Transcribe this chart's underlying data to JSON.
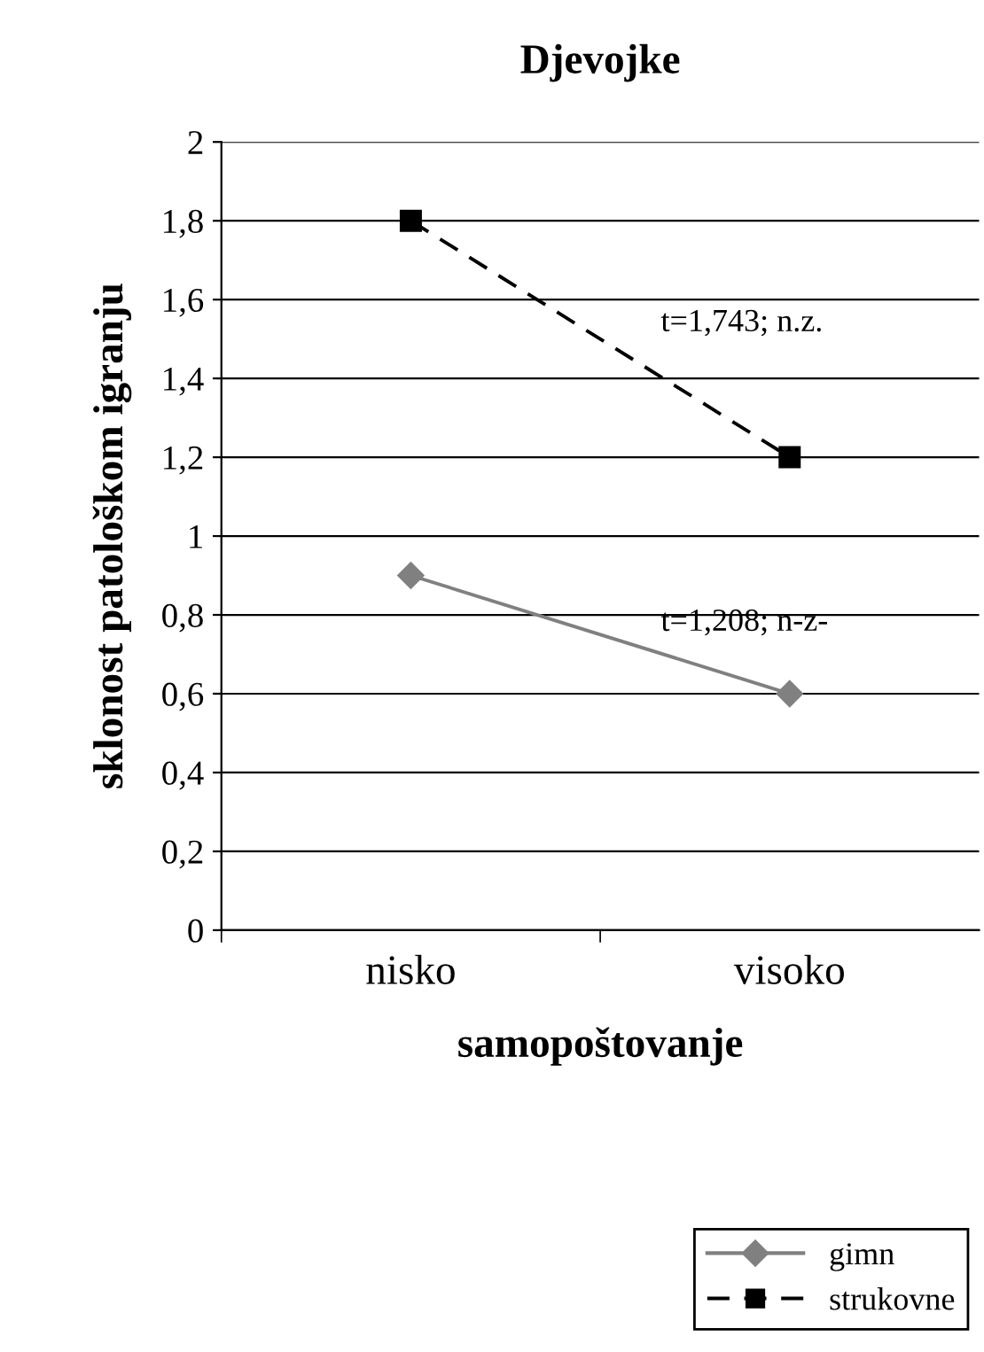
{
  "chart_data": {
    "type": "line",
    "title": "Djevojke",
    "xlabel": "samopoštovanje",
    "ylabel": "sklonost patološkom igranju",
    "categories": [
      "nisko",
      "visoko"
    ],
    "series": [
      {
        "name": "gimn",
        "color": "#808080",
        "values": [
          0.9,
          0.6
        ],
        "marker": "diamond",
        "line_style": "solid"
      },
      {
        "name": "strukovne",
        "color": "#000000",
        "values": [
          1.8,
          1.2
        ],
        "marker": "square",
        "line_style": "dashed"
      }
    ],
    "ylim": [
      0,
      2
    ],
    "yticks": [
      0,
      {
        "value": 0.2,
        "label": "0,2"
      },
      {
        "value": 0.4,
        "label": "0,4"
      },
      {
        "value": 0.6,
        "label": "0,6"
      },
      {
        "value": 0.8,
        "label": "0,8"
      },
      1,
      {
        "value": 1.2,
        "label": "1,2"
      },
      {
        "value": 1.4,
        "label": "1,4"
      },
      {
        "value": 1.6,
        "label": "1,6"
      },
      {
        "value": 1.8,
        "label": "1,8"
      },
      2
    ],
    "grid": "y",
    "legend": "bottom right",
    "annotations": [
      "t=1,743; n.z.",
      "t=1,208; n-z-"
    ]
  }
}
